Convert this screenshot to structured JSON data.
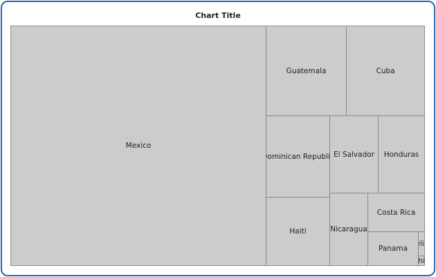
{
  "chart_data": {
    "type": "treemap",
    "title": "Chart Title",
    "items": [
      {
        "label": "Mexico",
        "value": 128
      },
      {
        "label": "Guatemala",
        "value": 15.1
      },
      {
        "label": "Cuba",
        "value": 14.7
      },
      {
        "label": "Dominican Republic",
        "value": 10.9
      },
      {
        "label": "Haiti",
        "value": 9.1
      },
      {
        "label": "El Salvador",
        "value": 7.8
      },
      {
        "label": "Honduras",
        "value": 7.5
      },
      {
        "label": "Nicaragua",
        "value": 5.8
      },
      {
        "label": "Costa Rica",
        "value": 4.6
      },
      {
        "label": "Panama",
        "value": 3.6
      },
      {
        "label": "Belize",
        "value": 0.32
      },
      {
        "label": "hi",
        "value": 0.13
      }
    ],
    "colors": {
      "fill": "#cccccc",
      "border": "#8a8a8a",
      "frame": "#2a64ad"
    }
  }
}
